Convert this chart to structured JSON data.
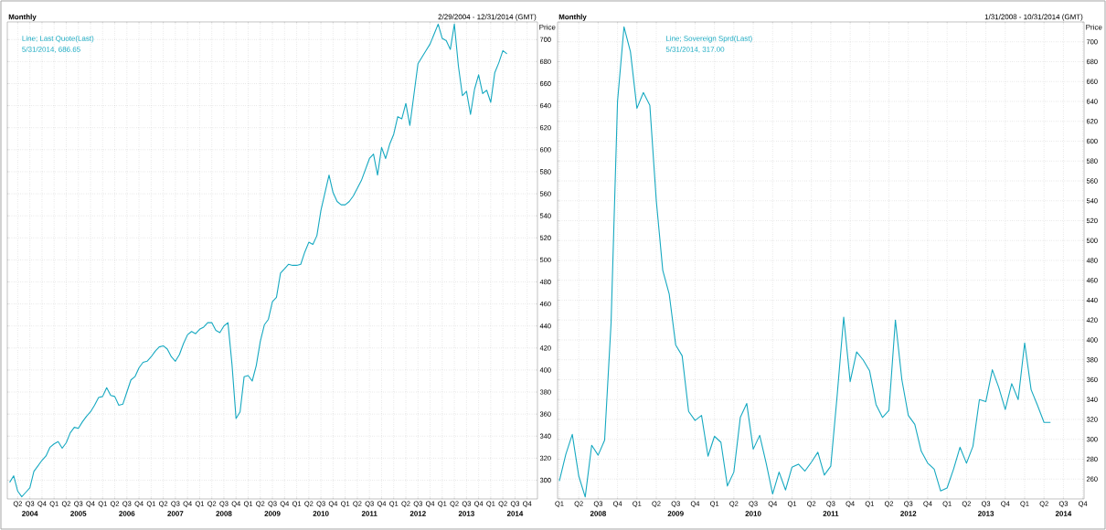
{
  "chart_data": [
    {
      "type": "line",
      "title": "Monthly",
      "subtitle": "2/29/2004 - 12/31/2014 (GMT)",
      "ylabel": "Price",
      "x": [
        "2004-02",
        "2004-03",
        "2004-04",
        "2004-05",
        "2004-06",
        "2004-07",
        "2004-08",
        "2004-09",
        "2004-10",
        "2004-11",
        "2004-12",
        "2005-01",
        "2005-02",
        "2005-03",
        "2005-04",
        "2005-05",
        "2005-06",
        "2005-07",
        "2005-08",
        "2005-09",
        "2005-10",
        "2005-11",
        "2005-12",
        "2006-01",
        "2006-02",
        "2006-03",
        "2006-04",
        "2006-05",
        "2006-06",
        "2006-07",
        "2006-08",
        "2006-09",
        "2006-10",
        "2006-11",
        "2006-12",
        "2007-01",
        "2007-02",
        "2007-03",
        "2007-04",
        "2007-05",
        "2007-06",
        "2007-07",
        "2007-08",
        "2007-09",
        "2007-10",
        "2007-11",
        "2007-12",
        "2008-01",
        "2008-02",
        "2008-03",
        "2008-04",
        "2008-05",
        "2008-06",
        "2008-07",
        "2008-08",
        "2008-09",
        "2008-10",
        "2008-11",
        "2008-12",
        "2009-01",
        "2009-02",
        "2009-03",
        "2009-04",
        "2009-05",
        "2009-06",
        "2009-07",
        "2009-08",
        "2009-09",
        "2009-10",
        "2009-11",
        "2009-12",
        "2010-01",
        "2010-02",
        "2010-03",
        "2010-04",
        "2010-05",
        "2010-06",
        "2010-07",
        "2010-08",
        "2010-09",
        "2010-10",
        "2010-11",
        "2010-12",
        "2011-01",
        "2011-02",
        "2011-03",
        "2011-04",
        "2011-05",
        "2011-06",
        "2011-07",
        "2011-08",
        "2011-09",
        "2011-10",
        "2011-11",
        "2011-12",
        "2012-01",
        "2012-02",
        "2012-03",
        "2012-04",
        "2012-05",
        "2012-06",
        "2012-07",
        "2012-08",
        "2012-09",
        "2012-10",
        "2012-11",
        "2012-12",
        "2013-01",
        "2013-02",
        "2013-03",
        "2013-04",
        "2013-05",
        "2013-06",
        "2013-07",
        "2013-08",
        "2013-09",
        "2013-10",
        "2013-11",
        "2013-12",
        "2014-01",
        "2014-02",
        "2014-03",
        "2014-04",
        "2014-05"
      ],
      "series": [
        {
          "name": "Line; Last Quote(Last)",
          "color": "#17a9c1",
          "values": [
            298,
            304,
            290,
            285,
            289,
            293,
            308,
            313,
            318,
            322,
            330,
            333,
            335,
            329,
            334,
            343,
            348,
            347,
            353,
            358,
            362,
            368,
            375,
            376,
            384,
            377,
            376,
            368,
            369,
            380,
            391,
            394,
            402,
            407,
            408,
            412,
            417,
            421,
            422,
            419,
            412,
            408,
            414,
            424,
            432,
            435,
            433,
            437,
            439,
            443,
            443,
            436,
            434,
            440,
            443,
            405,
            356,
            362,
            394,
            395,
            390,
            404,
            426,
            441,
            446,
            462,
            466,
            488,
            492,
            496,
            495,
            495,
            496,
            507,
            516,
            514,
            522,
            545,
            561,
            577,
            561,
            553,
            550,
            550,
            553,
            558,
            565,
            572,
            582,
            592,
            596,
            577,
            602,
            592,
            605,
            614,
            630,
            628,
            642,
            622,
            650,
            678,
            684,
            690,
            696,
            705,
            714,
            701,
            699,
            691,
            714,
            676,
            649,
            653,
            632,
            655,
            668,
            651,
            654,
            643,
            670,
            679,
            690,
            687
          ]
        }
      ],
      "xlim": [
        "2004-01-14",
        "2014-12-18"
      ],
      "ylim": [
        283,
        716
      ],
      "xticks": [
        {
          "value": "2004-04",
          "label": "Q2"
        },
        {
          "value": "2004-07",
          "label": "Q3"
        },
        {
          "value": "2004-10",
          "label": "Q4"
        },
        {
          "value": "2005-01",
          "label": "Q1"
        },
        {
          "value": "2005-04",
          "label": "Q2"
        },
        {
          "value": "2005-07",
          "label": "Q3"
        },
        {
          "value": "2005-10",
          "label": "Q4"
        },
        {
          "value": "2006-01",
          "label": "Q1"
        },
        {
          "value": "2006-04",
          "label": "Q2"
        },
        {
          "value": "2006-07",
          "label": "Q3"
        },
        {
          "value": "2006-10",
          "label": "Q4"
        },
        {
          "value": "2007-01",
          "label": "Q1"
        },
        {
          "value": "2007-04",
          "label": "Q2"
        },
        {
          "value": "2007-07",
          "label": "Q3"
        },
        {
          "value": "2007-10",
          "label": "Q4"
        },
        {
          "value": "2008-01",
          "label": "Q1"
        },
        {
          "value": "2008-04",
          "label": "Q2"
        },
        {
          "value": "2008-07",
          "label": "Q3"
        },
        {
          "value": "2008-10",
          "label": "Q4"
        },
        {
          "value": "2009-01",
          "label": "Q1"
        },
        {
          "value": "2009-04",
          "label": "Q2"
        },
        {
          "value": "2009-07",
          "label": "Q3"
        },
        {
          "value": "2009-10",
          "label": "Q4"
        },
        {
          "value": "2010-01",
          "label": "Q1"
        },
        {
          "value": "2010-04",
          "label": "Q2"
        },
        {
          "value": "2010-07",
          "label": "Q3"
        },
        {
          "value": "2010-10",
          "label": "Q4"
        },
        {
          "value": "2011-01",
          "label": "Q1"
        },
        {
          "value": "2011-04",
          "label": "Q2"
        },
        {
          "value": "2011-07",
          "label": "Q3"
        },
        {
          "value": "2011-10",
          "label": "Q4"
        },
        {
          "value": "2012-01",
          "label": "Q1"
        },
        {
          "value": "2012-04",
          "label": "Q2"
        },
        {
          "value": "2012-07",
          "label": "Q3"
        },
        {
          "value": "2012-10",
          "label": "Q4"
        },
        {
          "value": "2013-01",
          "label": "Q1"
        },
        {
          "value": "2013-04",
          "label": "Q2"
        },
        {
          "value": "2013-07",
          "label": "Q3"
        },
        {
          "value": "2013-10",
          "label": "Q4"
        },
        {
          "value": "2014-01",
          "label": "Q1"
        },
        {
          "value": "2014-04",
          "label": "Q2"
        },
        {
          "value": "2014-07",
          "label": "Q3"
        },
        {
          "value": "2014-10",
          "label": "Q4"
        }
      ],
      "yticks": [
        300,
        320,
        340,
        360,
        380,
        400,
        420,
        440,
        460,
        480,
        500,
        520,
        540,
        560,
        580,
        600,
        620,
        640,
        660,
        680,
        700
      ],
      "grid": true,
      "legend": "top left",
      "annotations": [
        "5/31/2014, 686.65",
        "2004",
        "2005",
        "2006",
        "2007",
        "2008",
        "2009",
        "2010",
        "2011",
        "2012",
        "2013",
        "2014"
      ]
    },
    {
      "type": "line",
      "title": "Monthly",
      "subtitle": "1/31/2008 - 10/31/2014 (GMT)",
      "ylabel": "Price",
      "x": [
        "2008-01",
        "2008-02",
        "2008-03",
        "2008-04",
        "2008-05",
        "2008-06",
        "2008-07",
        "2008-08",
        "2008-09",
        "2008-10",
        "2008-11",
        "2008-12",
        "2009-01",
        "2009-02",
        "2009-03",
        "2009-04",
        "2009-05",
        "2009-06",
        "2009-07",
        "2009-08",
        "2009-09",
        "2009-10",
        "2009-11",
        "2009-12",
        "2010-01",
        "2010-02",
        "2010-03",
        "2010-04",
        "2010-05",
        "2010-06",
        "2010-07",
        "2010-08",
        "2010-09",
        "2010-10",
        "2010-11",
        "2010-12",
        "2011-01",
        "2011-02",
        "2011-03",
        "2011-04",
        "2011-05",
        "2011-06",
        "2011-07",
        "2011-08",
        "2011-09",
        "2011-10",
        "2011-11",
        "2011-12",
        "2012-01",
        "2012-02",
        "2012-03",
        "2012-04",
        "2012-05",
        "2012-06",
        "2012-07",
        "2012-08",
        "2012-09",
        "2012-10",
        "2012-11",
        "2012-12",
        "2013-01",
        "2013-02",
        "2013-03",
        "2013-04",
        "2013-05",
        "2013-06",
        "2013-07",
        "2013-08",
        "2013-09",
        "2013-10",
        "2013-11",
        "2013-12",
        "2014-01",
        "2014-02",
        "2014-03",
        "2014-04",
        "2014-05"
      ],
      "series": [
        {
          "name": "Line; Sovereign Sprd(Last)",
          "color": "#17a9c1",
          "values": [
            258,
            285,
            305,
            263,
            242,
            294,
            284,
            299,
            417,
            640,
            715,
            690,
            633,
            649,
            636,
            540,
            470,
            446,
            395,
            384,
            328,
            319,
            324,
            283,
            303,
            297,
            253,
            267,
            322,
            336,
            290,
            304,
            276,
            245,
            267,
            249,
            272,
            275,
            268,
            277,
            287,
            264,
            273,
            345,
            423,
            358,
            388,
            380,
            369,
            335,
            322,
            329,
            420,
            360,
            324,
            315,
            288,
            276,
            270,
            248,
            251,
            270,
            292,
            276,
            293,
            340,
            338,
            370,
            352,
            330,
            356,
            340,
            397,
            350,
            334,
            317,
            317
          ]
        }
      ],
      "xlim": [
        "2007-12-23",
        "2014-10-07"
      ],
      "ylim": [
        240,
        720
      ],
      "xticks": [
        {
          "value": "2008-01",
          "label": "Q1"
        },
        {
          "value": "2008-04",
          "label": "Q2"
        },
        {
          "value": "2008-07",
          "label": "Q3"
        },
        {
          "value": "2008-10",
          "label": "Q4"
        },
        {
          "value": "2009-01",
          "label": "Q1"
        },
        {
          "value": "2009-04",
          "label": "Q2"
        },
        {
          "value": "2009-07",
          "label": "Q3"
        },
        {
          "value": "2009-10",
          "label": "Q4"
        },
        {
          "value": "2010-01",
          "label": "Q1"
        },
        {
          "value": "2010-04",
          "label": "Q2"
        },
        {
          "value": "2010-07",
          "label": "Q3"
        },
        {
          "value": "2010-10",
          "label": "Q4"
        },
        {
          "value": "2011-01",
          "label": "Q1"
        },
        {
          "value": "2011-04",
          "label": "Q2"
        },
        {
          "value": "2011-07",
          "label": "Q3"
        },
        {
          "value": "2011-10",
          "label": "Q4"
        },
        {
          "value": "2012-01",
          "label": "Q1"
        },
        {
          "value": "2012-04",
          "label": "Q2"
        },
        {
          "value": "2012-07",
          "label": "Q3"
        },
        {
          "value": "2012-10",
          "label": "Q4"
        },
        {
          "value": "2013-01",
          "label": "Q1"
        },
        {
          "value": "2013-04",
          "label": "Q2"
        },
        {
          "value": "2013-07",
          "label": "Q3"
        },
        {
          "value": "2013-10",
          "label": "Q4"
        },
        {
          "value": "2014-01",
          "label": "Q1"
        },
        {
          "value": "2014-04",
          "label": "Q2"
        },
        {
          "value": "2014-07",
          "label": "Q3"
        },
        {
          "value": "2014-10",
          "label": "Q4"
        }
      ],
      "yticks": [
        260,
        280,
        300,
        320,
        340,
        360,
        380,
        400,
        420,
        440,
        460,
        480,
        500,
        520,
        540,
        560,
        580,
        600,
        620,
        640,
        660,
        680,
        700
      ],
      "grid": true,
      "legend": "top left",
      "annotations": [
        "5/31/2014, 317.00",
        "2008",
        "2009",
        "2010",
        "2011",
        "2012",
        "2013",
        "2014"
      ]
    }
  ]
}
